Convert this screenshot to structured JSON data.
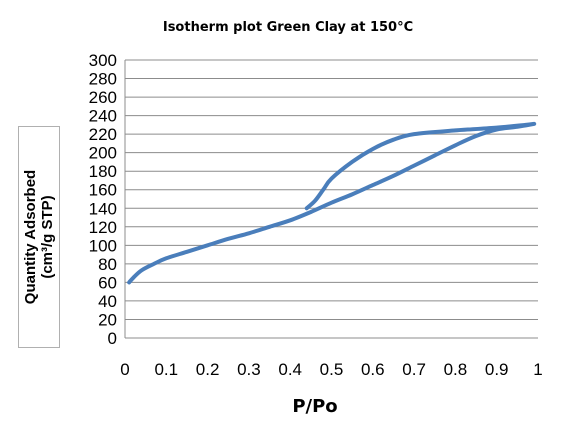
{
  "chart_data": {
    "type": "line",
    "title": "Isotherm plot Green Clay at 150°C",
    "xlabel": "P/Po",
    "ylabel": [
      "Quantity Adsorbed",
      "(cm³/g STP)"
    ],
    "xlim": [
      0,
      1
    ],
    "ylim": [
      0,
      300
    ],
    "x_ticks": [
      "0",
      "0.1",
      "0.2",
      "0.3",
      "0.4",
      "0.5",
      "0.6",
      "0.7",
      "0.8",
      "0.9",
      "1"
    ],
    "y_ticks": [
      "0",
      "20",
      "40",
      "60",
      "80",
      "100",
      "120",
      "140",
      "160",
      "180",
      "200",
      "220",
      "240",
      "260",
      "280",
      "300"
    ],
    "grid": "horizontal",
    "legend": "none",
    "series": [
      {
        "color": "#4a7ebb",
        "x": [
          0.01,
          0.02,
          0.04,
          0.07,
          0.1,
          0.15,
          0.2,
          0.25,
          0.3,
          0.35,
          0.4,
          0.45,
          0.5,
          0.55,
          0.6,
          0.65,
          0.7,
          0.75,
          0.8,
          0.85,
          0.9,
          0.95,
          0.99,
          0.97,
          0.9,
          0.8,
          0.7,
          0.65,
          0.6,
          0.55,
          0.5,
          0.48,
          0.46,
          0.44
        ],
        "y": [
          60,
          65,
          73,
          80,
          86,
          93,
          100,
          107,
          113,
          120,
          127,
          136,
          146,
          155,
          165,
          175,
          186,
          197,
          208,
          218,
          225,
          228,
          231,
          230,
          227,
          224,
          220,
          214,
          204,
          190,
          172,
          160,
          148,
          140
        ]
      }
    ]
  }
}
